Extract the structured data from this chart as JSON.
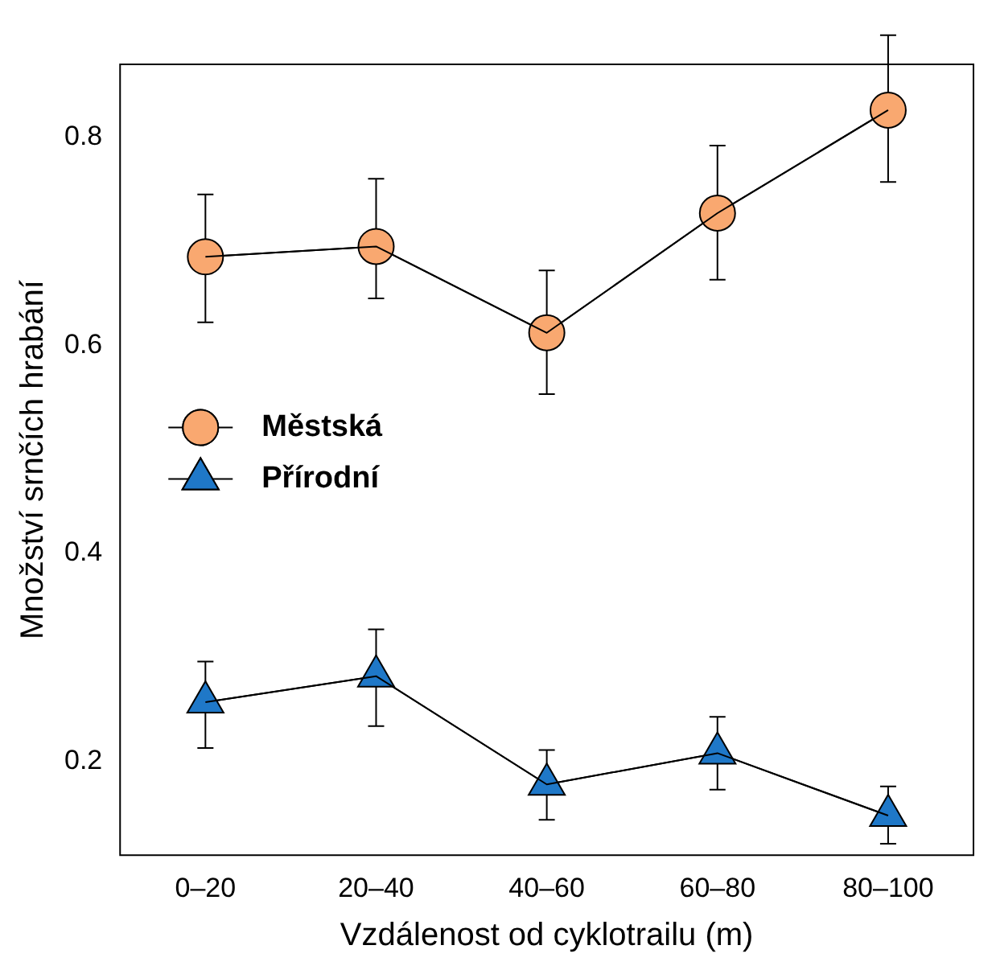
{
  "chart_data": {
    "type": "line",
    "xlabel": "Vzdálenost od cyklotrailu (m)",
    "ylabel": "Množství srnčích hrabání",
    "categories": [
      "0–20",
      "20–40",
      "40–60",
      "60–80",
      "80–100"
    ],
    "series": [
      {
        "name": "Městská",
        "color": "#f9a870",
        "marker": "circle",
        "values": [
          0.685,
          0.695,
          0.612,
          0.727,
          0.826
        ],
        "errors": [
          [
            0.622,
            0.745
          ],
          [
            0.645,
            0.76
          ],
          [
            0.553,
            0.672
          ],
          [
            0.663,
            0.792
          ],
          [
            0.757,
            0.898
          ]
        ]
      },
      {
        "name": "Přírodní",
        "color": "#1f78c8",
        "marker": "triangle",
        "values": [
          0.257,
          0.282,
          0.178,
          0.208,
          0.148
        ],
        "errors": [
          [
            0.213,
            0.296
          ],
          [
            0.234,
            0.327
          ],
          [
            0.144,
            0.211
          ],
          [
            0.173,
            0.243
          ],
          [
            0.121,
            0.176
          ]
        ]
      }
    ],
    "ylim": [
      0.11,
      0.87
    ],
    "yticks": [
      0.2,
      0.4,
      0.6,
      0.8
    ],
    "grid": false,
    "legend": "left",
    "line_style": "solid"
  }
}
